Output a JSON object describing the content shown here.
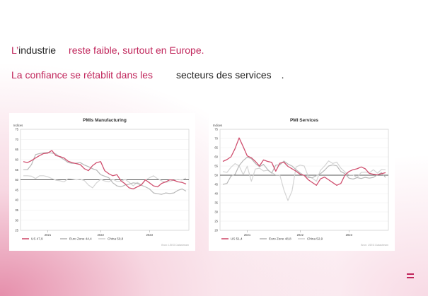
{
  "headline": {
    "line1_prefix": "L’",
    "line1_word": "industrie",
    "line1_rest": "reste faible, surtout en Europe.",
    "line2_a": "La confiance se rétablit dans les",
    "line2_b": "secteurs des services",
    "line2_end": "."
  },
  "colors": {
    "accent": "#c0245a",
    "us": "#d0506f",
    "euro": "#b8b8b8",
    "china": "#d4d4d4",
    "ref": "#555555"
  },
  "chart_data": [
    {
      "type": "line",
      "title": "PMIs Manufacturing",
      "ylabel": "Indices",
      "ylim": [
        25,
        75
      ],
      "yticks": [
        25,
        30,
        35,
        40,
        45,
        50,
        55,
        60,
        65,
        70,
        75
      ],
      "x_ticks": [
        "2021",
        "2022",
        "2023"
      ],
      "x_tick_pos": [
        6,
        19,
        31
      ],
      "n_points": 41,
      "reference_line": 50,
      "legend": [
        "US 47,9",
        "Euro Zone 44,4",
        "China 50,8"
      ],
      "source": "Bron: LSEG Datastream",
      "series": [
        {
          "name": "US 47,9",
          "values": [
            59,
            58.5,
            59.5,
            60.8,
            62,
            63,
            63.2,
            64.5,
            62,
            61.5,
            60.8,
            59.2,
            58.5,
            58,
            57.5,
            55.5,
            54.5,
            57,
            58.5,
            59,
            54.5,
            53,
            52,
            52.5,
            49.5,
            48,
            46,
            45.5,
            46.5,
            47.5,
            50,
            48.5,
            47,
            46.5,
            48.2,
            49,
            50,
            49.8,
            49,
            48.7,
            47.9
          ]
        },
        {
          "name": "Euro Zone 44,4",
          "values": [
            55,
            55,
            57.5,
            62.5,
            63,
            63.3,
            63.5,
            63.2,
            62.8,
            61.2,
            60,
            58.5,
            58.1,
            58.2,
            58.5,
            57.3,
            56.5,
            55.5,
            54.8,
            52.5,
            51.8,
            51,
            48.5,
            47,
            46.5,
            47.4,
            47.8,
            48.5,
            48.2,
            47.3,
            46.5,
            45.5,
            43.5,
            43.1,
            42.8,
            43.5,
            43.2,
            43.5,
            44.8,
            45.5,
            44.4
          ]
        },
        {
          "name": "China 50,8",
          "values": [
            52,
            52,
            51.8,
            50.6,
            52,
            52,
            51.5,
            50.6,
            49.8,
            49.5,
            49,
            50.5,
            50.3,
            50,
            50.2,
            49.6,
            47.4,
            46,
            48.5,
            50.2,
            49.4,
            49,
            50.2,
            49.2,
            49.3,
            50.2,
            48.8,
            47,
            48.7,
            47.5,
            49.8,
            51,
            52,
            50.5,
            49.5,
            48.7,
            49.2,
            49.8,
            50.1,
            49.9,
            50.8
          ]
        }
      ]
    },
    {
      "type": "line",
      "title": "PMI Services",
      "ylabel": "Indices",
      "ylim": [
        20,
        75
      ],
      "yticks": [
        20,
        25,
        30,
        35,
        40,
        45,
        50,
        55,
        60,
        65,
        70,
        75
      ],
      "x_ticks": [
        "2021",
        "2022",
        "2023"
      ],
      "x_tick_pos": [
        6,
        19,
        31
      ],
      "n_points": 41,
      "reference_line": 50,
      "legend": [
        "US 51,4",
        "Euro Zone 48,8",
        "China 52,9"
      ],
      "source": "Bron: LSEG Datastream",
      "series": [
        {
          "name": "US 51,4",
          "values": [
            57.5,
            58.5,
            60,
            64.5,
            70.3,
            65.5,
            60.5,
            59.5,
            57.5,
            55,
            58.3,
            57.5,
            57,
            52.2,
            56.5,
            57.1,
            54.8,
            53.5,
            52.2,
            50.5,
            49.9,
            47.5,
            46,
            44.5,
            48,
            49,
            47.5,
            46,
            44.5,
            45.5,
            50,
            52,
            53,
            53.5,
            54.5,
            53.5,
            51,
            50.5,
            50.2,
            50.8,
            51.4
          ]
        },
        {
          "name": "Euro Zone 48,8",
          "values": [
            45,
            45.5,
            49.5,
            50.5,
            55.2,
            58,
            59.8,
            59,
            56.4,
            54.6,
            55.9,
            53.1,
            51.1,
            55.5,
            55.6,
            57.7,
            56.1,
            55,
            53,
            51.2,
            49.8,
            48.8,
            48.6,
            49.8,
            50.8,
            52.7,
            55,
            55.6,
            55.1,
            52,
            50.9,
            48.4,
            47.9,
            48.7,
            48.2,
            48.8,
            48.4,
            48.8,
            50.2,
            51.4,
            48.8
          ]
        },
        {
          "name": "China 52,9",
          "values": [
            52,
            51.5,
            54.3,
            56.3,
            55.1,
            50.3,
            54.9,
            46.7,
            53.4,
            53.8,
            52.3,
            52.7,
            51.4,
            50.2,
            50.2,
            42,
            36.2,
            41.4,
            54.5,
            55.5,
            55,
            49.3,
            48.4,
            46.7,
            52.7,
            55,
            57.8,
            56.4,
            57.1,
            53.9,
            51.8,
            50.2,
            50.2,
            48.7,
            51.5,
            51.7,
            51.2,
            53,
            51.1,
            53.1,
            52.9
          ]
        }
      ]
    }
  ]
}
